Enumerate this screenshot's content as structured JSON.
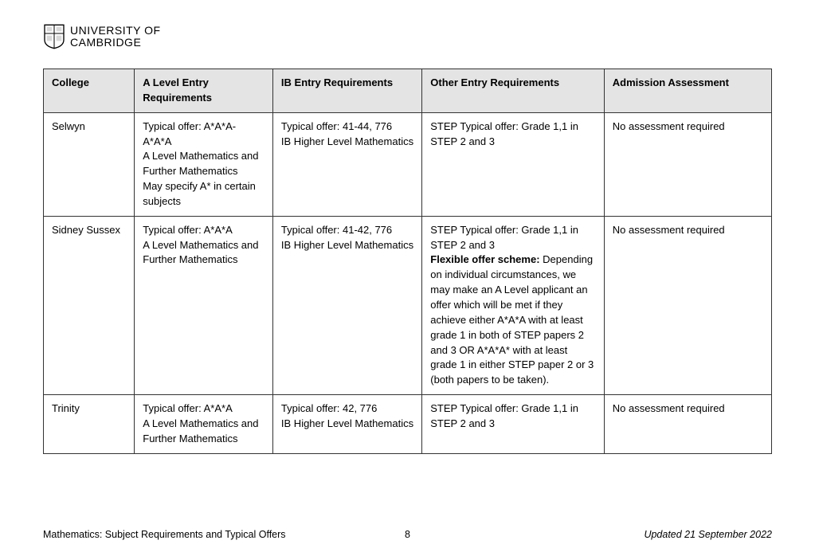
{
  "header": {
    "line1": "UNIVERSITY OF",
    "line2": "CAMBRIDGE"
  },
  "table": {
    "columns": [
      "College",
      "A Level Entry Requirements",
      "IB Entry Requirements",
      "Other Entry Requirements",
      "Admission Assessment"
    ],
    "rows": [
      {
        "college": "Selwyn",
        "alevel": "Typical offer: A*A*A-A*A*A\nA Level Mathematics and Further Mathematics\nMay specify A* in certain subjects",
        "ib": "Typical offer: 41-44, 776\nIB Higher Level Mathematics",
        "other_plain": "STEP Typical offer: Grade 1,1 in STEP 2 and 3",
        "other_bold_label": "",
        "other_after": "",
        "assessment": "No assessment required"
      },
      {
        "college": "Sidney Sussex",
        "alevel": "Typical offer: A*A*A\nA Level Mathematics and Further Mathematics",
        "ib": "Typical offer: 41-42, 776\nIB Higher Level Mathematics",
        "other_plain": "STEP Typical offer: Grade 1,1 in STEP 2 and 3",
        "other_bold_label": "Flexible offer scheme:",
        "other_after": " Depending on individual circumstances, we may make an A Level applicant an offer which will be met if they achieve either A*A*A with at least grade 1 in both of STEP papers 2 and 3 OR A*A*A* with at least grade 1 in either STEP paper 2 or 3 (both papers to be taken).",
        "assessment": "No assessment required"
      },
      {
        "college": "Trinity",
        "alevel": "Typical offer: A*A*A\nA Level Mathematics and Further Mathematics",
        "ib": "Typical offer: 42, 776\nIB Higher Level Mathematics",
        "other_plain": "STEP Typical offer: Grade 1,1 in STEP 2 and 3",
        "other_bold_label": "",
        "other_after": "",
        "assessment": "No assessment required"
      }
    ]
  },
  "footer": {
    "title": "Mathematics: Subject Requirements and Typical Offers",
    "page": "8",
    "updated": "Updated 21 September 2022"
  }
}
